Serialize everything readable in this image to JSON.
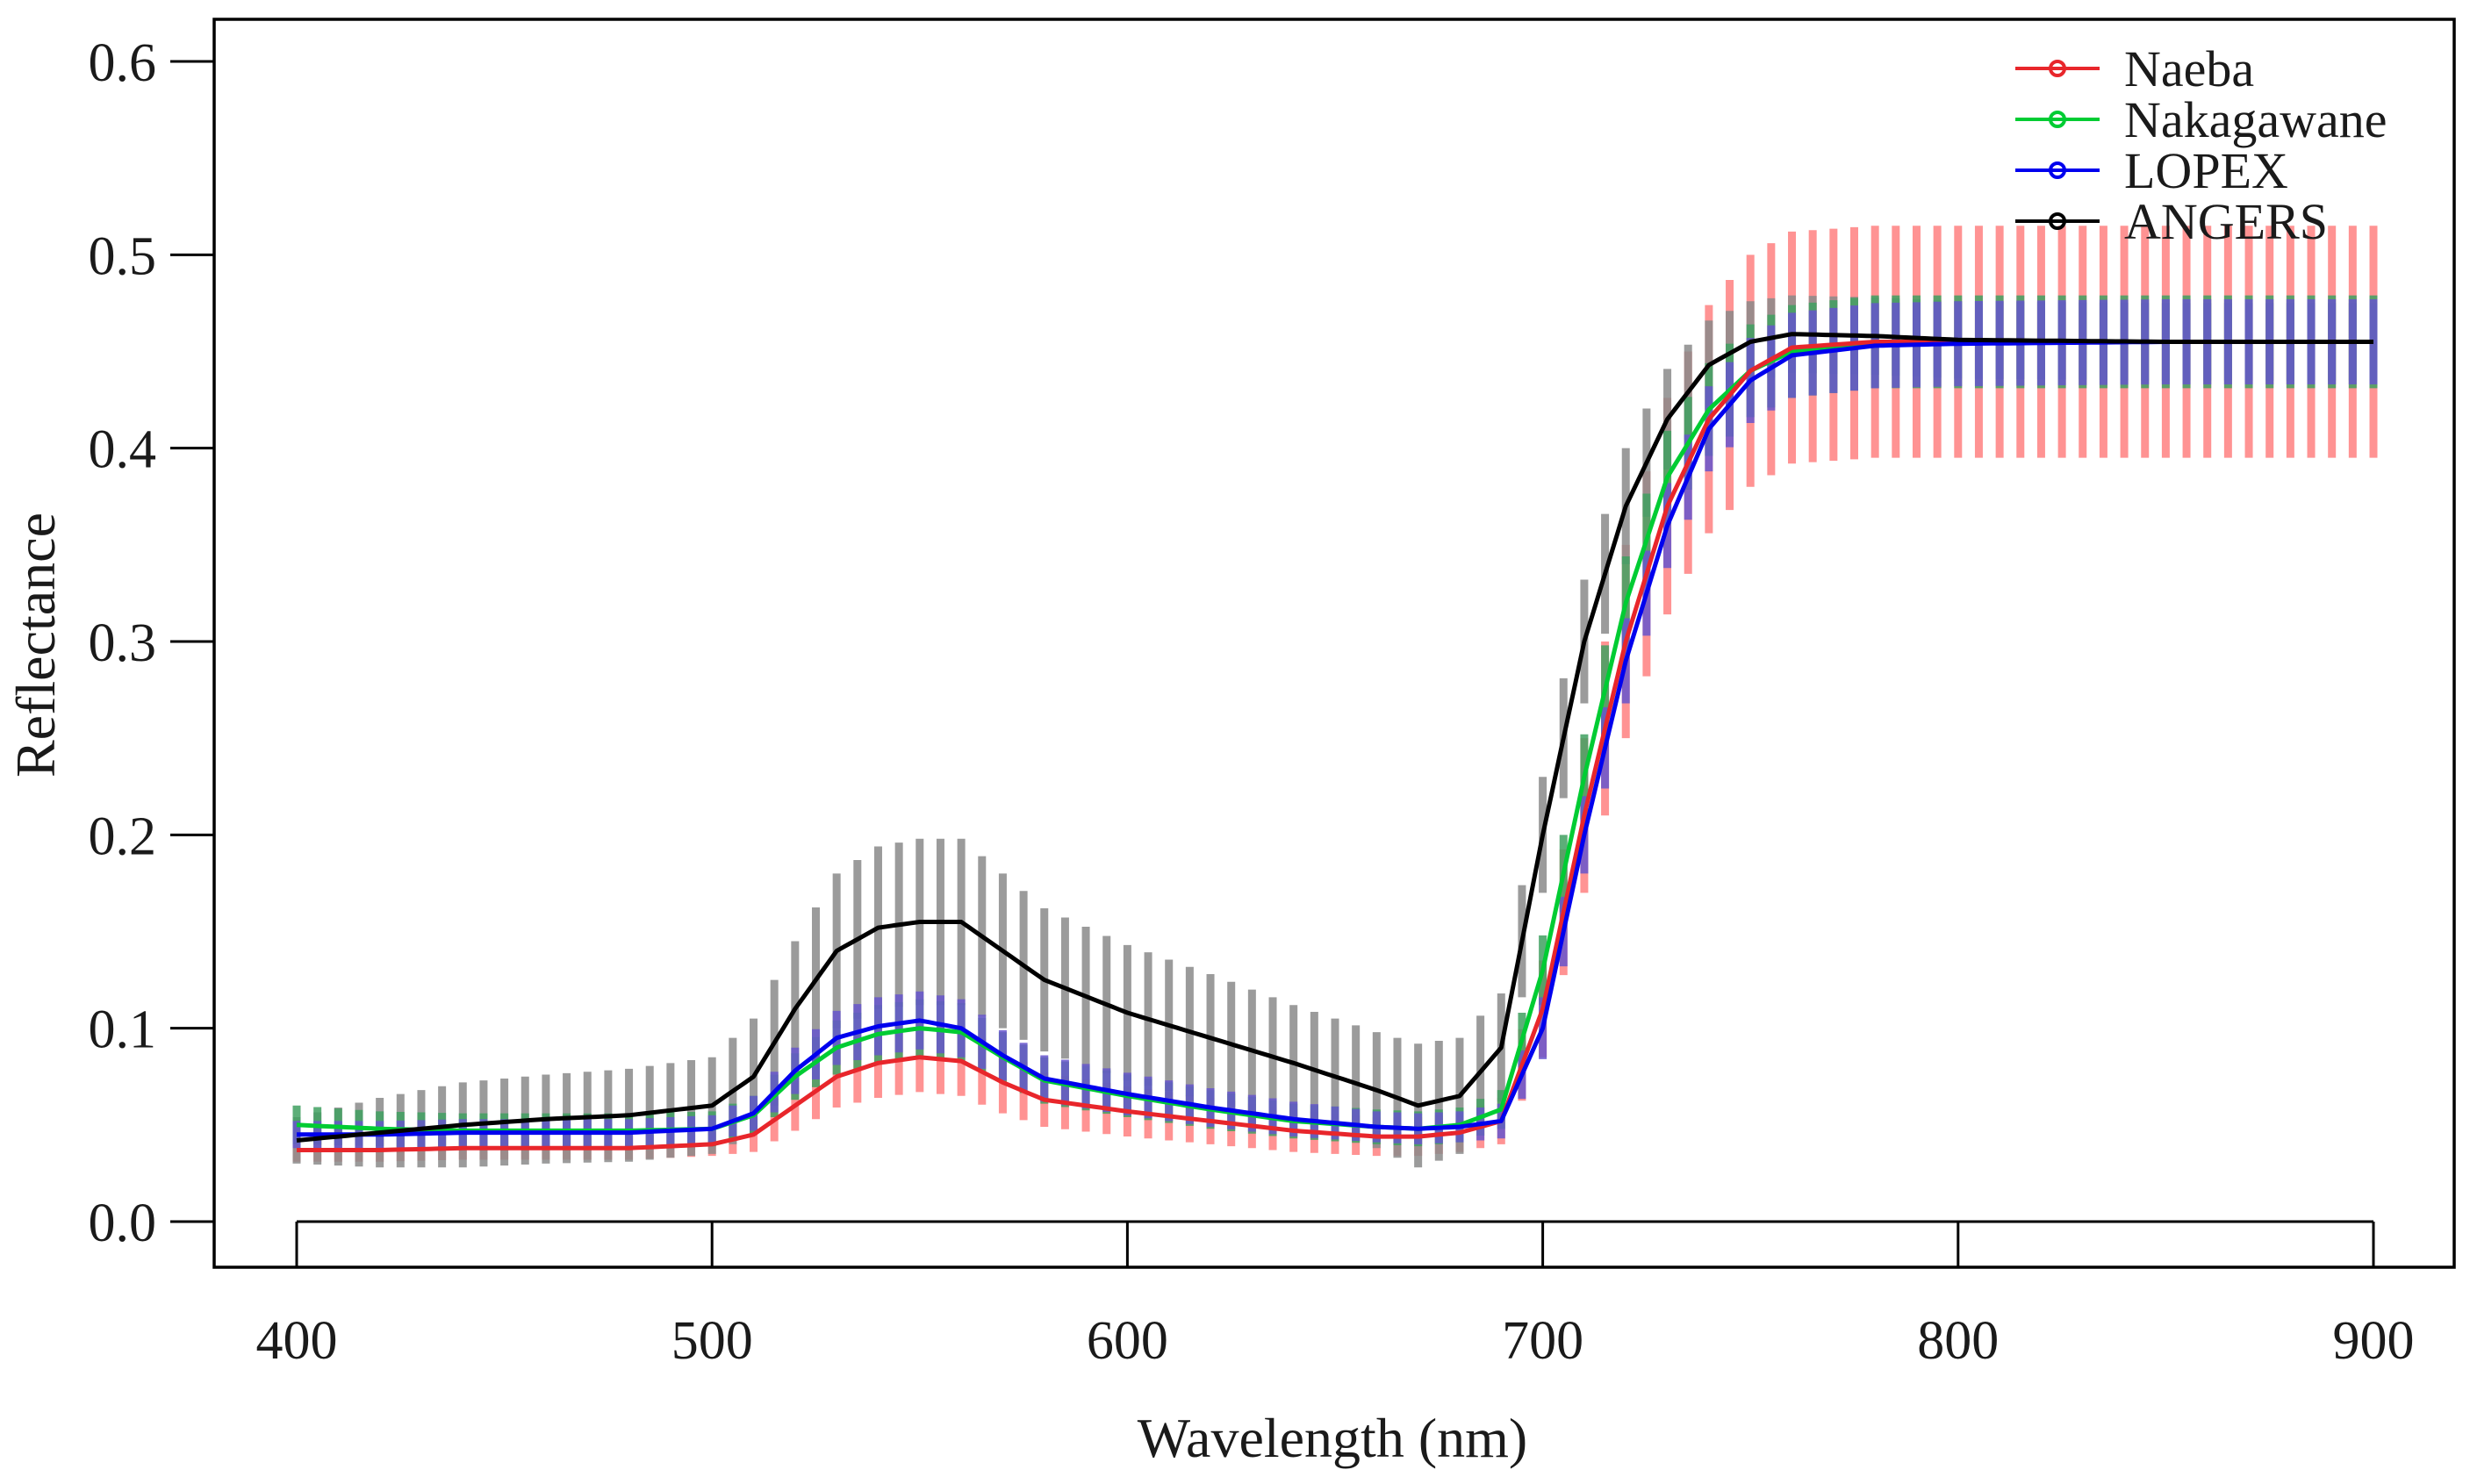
{
  "chart_data": {
    "type": "line",
    "title": "",
    "xlabel": "Wavelength (nm)",
    "ylabel": "Reflectance",
    "xlim": [
      400,
      900
    ],
    "ylim": [
      0.0,
      0.6
    ],
    "xticks": [
      "400",
      "500",
      "600",
      "700",
      "800",
      "900"
    ],
    "yticks": [
      "0.0",
      "0.1",
      "0.2",
      "0.3",
      "0.4",
      "0.5",
      "0.6"
    ],
    "grid": false,
    "legend_position": "top-right",
    "error_bars": "vertical bars showing ±1 SD at each wavelength (every ~5 nm)",
    "x": [
      400,
      420,
      440,
      460,
      480,
      500,
      510,
      520,
      530,
      540,
      550,
      560,
      570,
      580,
      600,
      620,
      640,
      660,
      670,
      680,
      690,
      700,
      710,
      720,
      730,
      740,
      750,
      760,
      780,
      800,
      850,
      900
    ],
    "series": [
      {
        "name": "Naeba",
        "color": "#e8262b",
        "band_color": "#ff8080",
        "values": [
          0.037,
          0.037,
          0.038,
          0.038,
          0.038,
          0.04,
          0.045,
          0.06,
          0.075,
          0.082,
          0.085,
          0.083,
          0.072,
          0.063,
          0.057,
          0.052,
          0.047,
          0.044,
          0.044,
          0.046,
          0.052,
          0.11,
          0.21,
          0.3,
          0.37,
          0.415,
          0.44,
          0.452,
          0.455,
          0.455,
          0.455,
          0.455
        ],
        "sd": [
          0.006,
          0.006,
          0.006,
          0.006,
          0.006,
          0.006,
          0.009,
          0.013,
          0.016,
          0.018,
          0.018,
          0.018,
          0.016,
          0.014,
          0.013,
          0.012,
          0.011,
          0.01,
          0.01,
          0.01,
          0.012,
          0.025,
          0.04,
          0.05,
          0.056,
          0.059,
          0.06,
          0.06,
          0.06,
          0.06,
          0.06,
          0.06
        ]
      },
      {
        "name": "Nakagawane",
        "color": "#00cc33",
        "band_color": "#40a060",
        "values": [
          0.05,
          0.048,
          0.047,
          0.047,
          0.047,
          0.048,
          0.055,
          0.075,
          0.09,
          0.097,
          0.1,
          0.098,
          0.085,
          0.073,
          0.065,
          0.058,
          0.052,
          0.049,
          0.048,
          0.05,
          0.058,
          0.13,
          0.23,
          0.32,
          0.385,
          0.42,
          0.44,
          0.45,
          0.455,
          0.455,
          0.455,
          0.455
        ],
        "sd": [
          0.01,
          0.009,
          0.009,
          0.009,
          0.009,
          0.009,
          0.01,
          0.012,
          0.014,
          0.015,
          0.015,
          0.015,
          0.013,
          0.012,
          0.011,
          0.01,
          0.009,
          0.009,
          0.009,
          0.009,
          0.01,
          0.018,
          0.022,
          0.024,
          0.024,
          0.024,
          0.024,
          0.024,
          0.024,
          0.024,
          0.024,
          0.024
        ]
      },
      {
        "name": "LOPEX",
        "color": "#0000ee",
        "band_color": "#6655cc",
        "values": [
          0.045,
          0.045,
          0.046,
          0.046,
          0.046,
          0.048,
          0.056,
          0.078,
          0.095,
          0.101,
          0.104,
          0.1,
          0.086,
          0.074,
          0.066,
          0.059,
          0.053,
          0.049,
          0.048,
          0.049,
          0.052,
          0.1,
          0.2,
          0.29,
          0.36,
          0.41,
          0.435,
          0.448,
          0.453,
          0.454,
          0.455,
          0.455
        ],
        "sd": [
          0.007,
          0.007,
          0.007,
          0.007,
          0.007,
          0.007,
          0.009,
          0.012,
          0.014,
          0.015,
          0.015,
          0.015,
          0.013,
          0.012,
          0.011,
          0.01,
          0.009,
          0.008,
          0.008,
          0.008,
          0.009,
          0.016,
          0.02,
          0.022,
          0.022,
          0.022,
          0.022,
          0.022,
          0.022,
          0.022,
          0.022,
          0.022
        ]
      },
      {
        "name": "ANGERS",
        "color": "#000000",
        "band_color": "#8a8a8a",
        "values": [
          0.042,
          0.046,
          0.05,
          0.053,
          0.055,
          0.06,
          0.075,
          0.11,
          0.14,
          0.152,
          0.155,
          0.155,
          0.14,
          0.125,
          0.108,
          0.095,
          0.082,
          0.068,
          0.06,
          0.065,
          0.09,
          0.2,
          0.3,
          0.37,
          0.415,
          0.443,
          0.455,
          0.459,
          0.458,
          0.456,
          0.455,
          0.455
        ],
        "sd": [
          0.012,
          0.018,
          0.022,
          0.023,
          0.024,
          0.025,
          0.03,
          0.035,
          0.04,
          0.042,
          0.043,
          0.043,
          0.04,
          0.037,
          0.035,
          0.033,
          0.03,
          0.03,
          0.032,
          0.03,
          0.028,
          0.03,
          0.032,
          0.03,
          0.026,
          0.023,
          0.021,
          0.02,
          0.02,
          0.02,
          0.02,
          0.02
        ]
      }
    ]
  }
}
